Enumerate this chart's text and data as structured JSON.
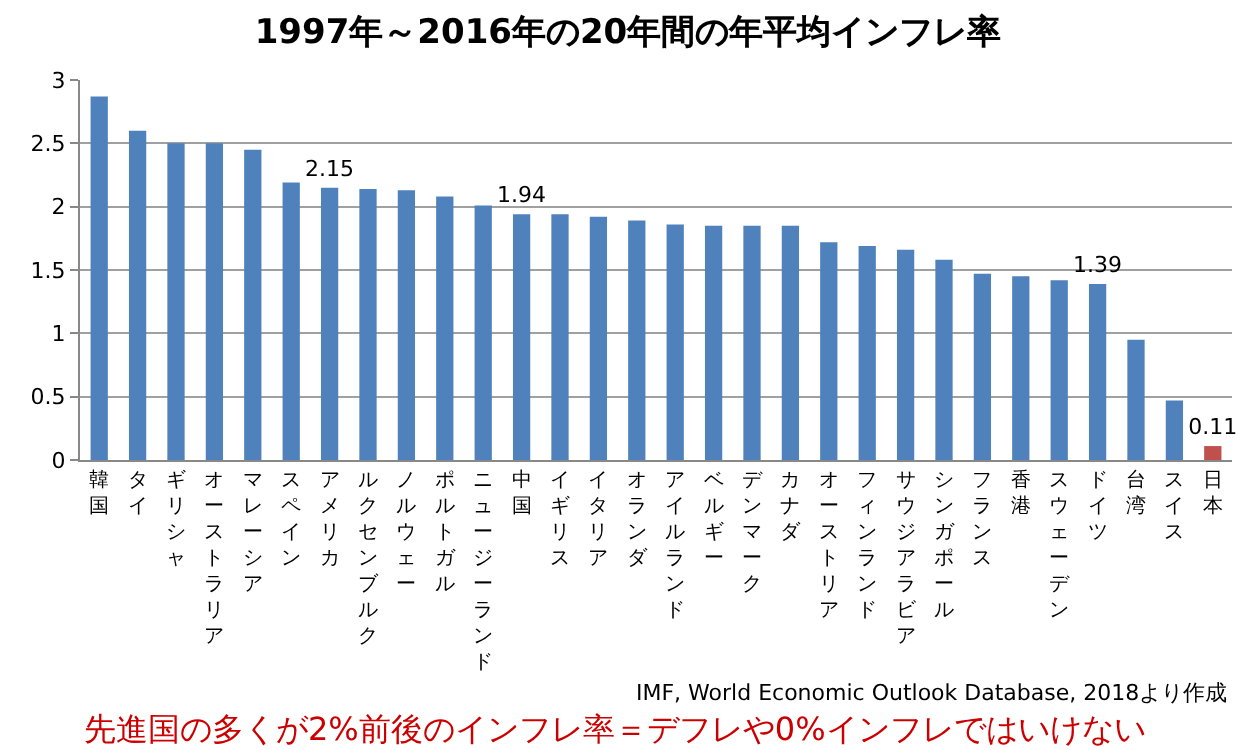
{
  "chart_data": {
    "type": "bar",
    "title": "1997年～2016年の20年間の年平均インフレ率",
    "categories": [
      "韓国",
      "タイ",
      "ギリシャ",
      "オーストラリア",
      "マレーシア",
      "スペイン",
      "アメリカ",
      "ルクセンブルク",
      "ノルウェー",
      "ポルトガル",
      "ニュージーランド",
      "中国",
      "イギリス",
      "イタリア",
      "オランダ",
      "アイルランド",
      "ベルギー",
      "デンマーク",
      "カナダ",
      "オーストリア",
      "フィンランド",
      "サウジアラビア",
      "シンガポール",
      "フランス",
      "香港",
      "スウェーデン",
      "ドイツ",
      "台湾",
      "スイス",
      "日本"
    ],
    "values": [
      2.87,
      2.6,
      2.5,
      2.5,
      2.45,
      2.19,
      2.15,
      2.14,
      2.13,
      2.08,
      2.01,
      1.94,
      1.94,
      1.92,
      1.89,
      1.86,
      1.85,
      1.85,
      1.85,
      1.72,
      1.69,
      1.66,
      1.58,
      1.47,
      1.45,
      1.42,
      1.39,
      0.95,
      0.47,
      0.11
    ],
    "value_labels": [
      null,
      null,
      null,
      null,
      null,
      null,
      "2.15",
      null,
      null,
      null,
      null,
      "1.94",
      null,
      null,
      null,
      null,
      null,
      null,
      null,
      null,
      null,
      null,
      null,
      null,
      null,
      null,
      "1.39",
      null,
      null,
      "0.11"
    ],
    "colors": [
      "#4f81bd",
      "#4f81bd",
      "#4f81bd",
      "#4f81bd",
      "#4f81bd",
      "#4f81bd",
      "#4f81bd",
      "#4f81bd",
      "#4f81bd",
      "#4f81bd",
      "#4f81bd",
      "#4f81bd",
      "#4f81bd",
      "#4f81bd",
      "#4f81bd",
      "#4f81bd",
      "#4f81bd",
      "#4f81bd",
      "#4f81bd",
      "#4f81bd",
      "#4f81bd",
      "#4f81bd",
      "#4f81bd",
      "#4f81bd",
      "#4f81bd",
      "#4f81bd",
      "#4f81bd",
      "#4f81bd",
      "#4f81bd",
      "#c0504d"
    ],
    "ylim": [
      0,
      3
    ],
    "yticks": [
      0,
      0.5,
      1,
      1.5,
      2,
      2.5,
      3
    ],
    "grid": "y",
    "annotations": [
      "IMF, World Economic Outlook Database, 2018より作成",
      "先進国の多くが2%前後のインフレ率＝デフレや0%インフレではいけない"
    ]
  }
}
